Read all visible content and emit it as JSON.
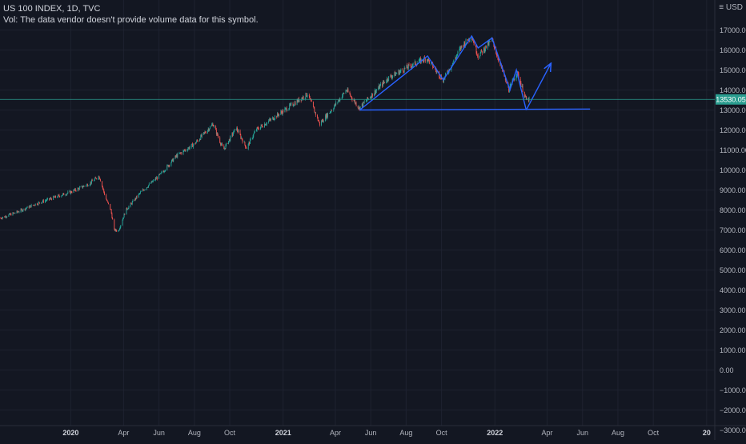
{
  "header": {
    "symbol_line": "US 100 INDEX, 1D, TVC",
    "volume_note": "Vol: The data vendor doesn't provide volume data for this symbol.",
    "currency_label": "USD"
  },
  "colors": {
    "background": "#131722",
    "grid": "#1e2230",
    "axis_text": "#b2b5be",
    "candle_up": "#26a69a",
    "candle_down": "#ef5350",
    "drawing": "#2962ff",
    "last_price": "#2a9d8f"
  },
  "chart_data": {
    "type": "candlestick",
    "x_type": "date",
    "x_range": [
      "2019-09-01",
      "2023-01-15"
    ],
    "ylim": [
      -3500,
      18500
    ],
    "y_ticks": [
      17000,
      16000,
      15000,
      14000,
      13000,
      12000,
      11000,
      10000,
      9000,
      8000,
      7000,
      6000,
      5000,
      4000,
      3000,
      2000,
      1000,
      0,
      -1000,
      -2000,
      -3000
    ],
    "y_tick_labels": [
      "17000.00",
      "16000.00",
      "15000.00",
      "14000.00",
      "13000.00",
      "12000.00",
      "11000.00",
      "10000.00",
      "9000.00",
      "8000.00",
      "7000.00",
      "6000.00",
      "5000.00",
      "4000.00",
      "3000.00",
      "2000.00",
      "1000.00",
      "0.00",
      "−1000.00",
      "−2000.00",
      "−3000.00"
    ],
    "x_ticks": [
      {
        "date": "2020-01-01",
        "label": "2020",
        "bold": true
      },
      {
        "date": "2020-04-01",
        "label": "Apr"
      },
      {
        "date": "2020-06-01",
        "label": "Jun"
      },
      {
        "date": "2020-08-01",
        "label": "Aug"
      },
      {
        "date": "2020-10-01",
        "label": "Oct"
      },
      {
        "date": "2021-01-01",
        "label": "2021",
        "bold": true
      },
      {
        "date": "2021-04-01",
        "label": "Apr"
      },
      {
        "date": "2021-06-01",
        "label": "Jun"
      },
      {
        "date": "2021-08-01",
        "label": "Aug"
      },
      {
        "date": "2021-10-01",
        "label": "Oct"
      },
      {
        "date": "2022-01-01",
        "label": "2022",
        "bold": true
      },
      {
        "date": "2022-04-01",
        "label": "Apr"
      },
      {
        "date": "2022-06-01",
        "label": "Jun"
      },
      {
        "date": "2022-08-01",
        "label": "Aug"
      },
      {
        "date": "2022-10-01",
        "label": "Oct"
      },
      {
        "date": "2023-01-01",
        "label": "20",
        "bold": true
      }
    ],
    "price_path": [
      {
        "date": "2019-09-02",
        "close": 7600
      },
      {
        "date": "2019-10-01",
        "close": 7900
      },
      {
        "date": "2019-11-01",
        "close": 8300
      },
      {
        "date": "2019-12-01",
        "close": 8600
      },
      {
        "date": "2020-01-01",
        "close": 8900
      },
      {
        "date": "2020-02-01",
        "close": 9300
      },
      {
        "date": "2020-02-19",
        "close": 9700
      },
      {
        "date": "2020-03-01",
        "close": 8600
      },
      {
        "date": "2020-03-10",
        "close": 8000
      },
      {
        "date": "2020-03-16",
        "close": 7000
      },
      {
        "date": "2020-03-23",
        "close": 6950
      },
      {
        "date": "2020-04-05",
        "close": 8000
      },
      {
        "date": "2020-05-01",
        "close": 8900
      },
      {
        "date": "2020-06-01",
        "close": 9700
      },
      {
        "date": "2020-07-01",
        "close": 10700
      },
      {
        "date": "2020-08-01",
        "close": 11300
      },
      {
        "date": "2020-09-02",
        "close": 12300
      },
      {
        "date": "2020-09-20",
        "close": 11000
      },
      {
        "date": "2020-10-12",
        "close": 12100
      },
      {
        "date": "2020-10-30",
        "close": 11100
      },
      {
        "date": "2020-11-15",
        "close": 12000
      },
      {
        "date": "2020-12-15",
        "close": 12600
      },
      {
        "date": "2021-02-12",
        "close": 13800
      },
      {
        "date": "2021-03-05",
        "close": 12300
      },
      {
        "date": "2021-03-25",
        "close": 13000
      },
      {
        "date": "2021-04-20",
        "close": 14000
      },
      {
        "date": "2021-05-12",
        "close": 13100
      },
      {
        "date": "2021-06-01",
        "close": 13700
      },
      {
        "date": "2021-07-01",
        "close": 14600
      },
      {
        "date": "2021-08-01",
        "close": 15100
      },
      {
        "date": "2021-09-05",
        "close": 15600
      },
      {
        "date": "2021-10-04",
        "close": 14500
      },
      {
        "date": "2021-11-05",
        "close": 16200
      },
      {
        "date": "2021-11-22",
        "close": 16700
      },
      {
        "date": "2021-12-03",
        "close": 15700
      },
      {
        "date": "2021-12-27",
        "close": 16500
      },
      {
        "date": "2022-01-25",
        "close": 14000
      },
      {
        "date": "2022-02-08",
        "close": 14900
      },
      {
        "date": "2022-02-24",
        "close": 13500
      },
      {
        "date": "2022-03-01",
        "close": 13530.05
      }
    ],
    "last_price": {
      "value": 13530.05,
      "label": "13530.05"
    },
    "drawings": [
      {
        "type": "polyline",
        "name": "pattern-zigzag",
        "points": [
          {
            "date": "2021-05-13",
            "value": 13000
          },
          {
            "date": "2021-09-07",
            "value": 15700
          },
          {
            "date": "2021-10-04",
            "value": 14500
          },
          {
            "date": "2021-11-22",
            "value": 16700
          },
          {
            "date": "2021-12-03",
            "value": 16100
          },
          {
            "date": "2021-12-27",
            "value": 16600
          },
          {
            "date": "2022-01-27",
            "value": 14000
          },
          {
            "date": "2022-02-07",
            "value": 15000
          },
          {
            "date": "2022-02-24",
            "value": 13000
          }
        ]
      },
      {
        "type": "line",
        "name": "neckline",
        "points": [
          {
            "date": "2021-05-13",
            "value": 13000
          },
          {
            "date": "2022-06-14",
            "value": 13050
          }
        ]
      },
      {
        "type": "arrow",
        "name": "projection-arrow",
        "points": [
          {
            "date": "2022-02-24",
            "value": 13000
          },
          {
            "date": "2022-04-07",
            "value": 15300
          }
        ]
      }
    ]
  }
}
